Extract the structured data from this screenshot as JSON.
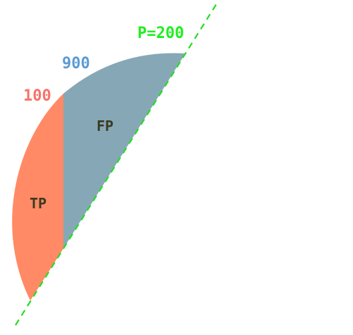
{
  "colors": {
    "tp_region": "#ff8a65",
    "fp_region": "#86a8b6",
    "threshold_line": "#22dd22",
    "label_100": "#fa7268",
    "label_900": "#5b9bd5",
    "label_p": "#1fee1f",
    "region_text": "#3a3a22"
  },
  "labels": {
    "threshold": "P=200",
    "count_fp": "900",
    "count_tp": "100",
    "region_fp": "FP",
    "region_tp": "TP"
  }
}
